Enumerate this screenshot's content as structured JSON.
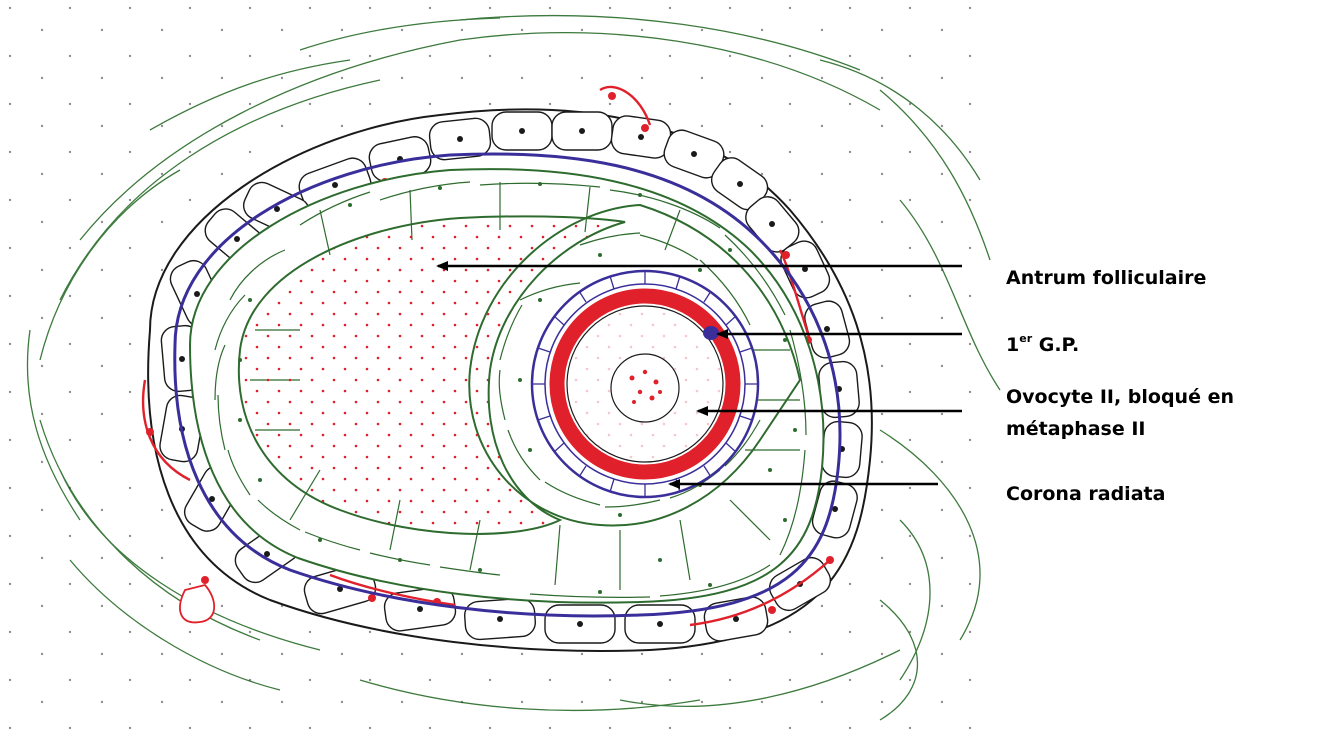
{
  "labels": {
    "antrum": "Antrum folliculaire",
    "gp_number": "1",
    "gp_superscript": "er",
    "gp_text": " G.P.",
    "ovocyte_line1": "Ovocyte II, bloqué en",
    "ovocyte_line2": "métaphase II",
    "corona": "Corona radiata"
  },
  "colors": {
    "ink": "#1a1a1a",
    "granulosa": "#2e6b2e",
    "stroma_fibers": "#3d7a3d",
    "basement_membrane": "#3a2f9a",
    "zona_red": "#e0202a",
    "dots_red": "#e0202a"
  }
}
